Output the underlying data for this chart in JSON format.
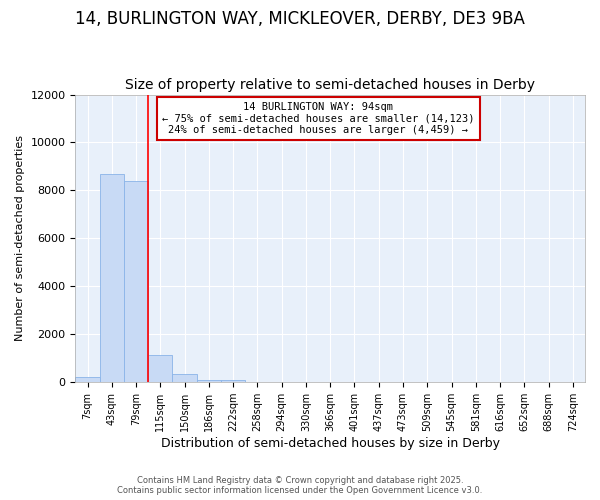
{
  "title1": "14, BURLINGTON WAY, MICKLEOVER, DERBY, DE3 9BA",
  "title2": "Size of property relative to semi-detached houses in Derby",
  "xlabel": "Distribution of semi-detached houses by size in Derby",
  "ylabel": "Number of semi-detached properties",
  "categories": [
    "7sqm",
    "43sqm",
    "79sqm",
    "115sqm",
    "150sqm",
    "186sqm",
    "222sqm",
    "258sqm",
    "294sqm",
    "330sqm",
    "366sqm",
    "401sqm",
    "437sqm",
    "473sqm",
    "509sqm",
    "545sqm",
    "581sqm",
    "616sqm",
    "652sqm",
    "688sqm",
    "724sqm"
  ],
  "values": [
    200,
    8700,
    8400,
    1150,
    350,
    80,
    80,
    15,
    5,
    2,
    1,
    0,
    0,
    0,
    0,
    0,
    0,
    0,
    0,
    0,
    0
  ],
  "bar_color": "#c8daf5",
  "bar_edge_color": "#8ab4e8",
  "red_line_x": 2.5,
  "annotation_title": "14 BURLINGTON WAY: 94sqm",
  "annotation_line2": "← 75% of semi-detached houses are smaller (14,123)",
  "annotation_line3": "24% of semi-detached houses are larger (4,459) →",
  "annotation_box_color": "#cc0000",
  "ylim": [
    0,
    12000
  ],
  "footer1": "Contains HM Land Registry data © Crown copyright and database right 2025.",
  "footer2": "Contains public sector information licensed under the Open Government Licence v3.0.",
  "background_color": "#ffffff",
  "plot_bg_color": "#e8f0fa",
  "grid_color": "#ffffff",
  "title1_fontsize": 12,
  "title2_fontsize": 10
}
